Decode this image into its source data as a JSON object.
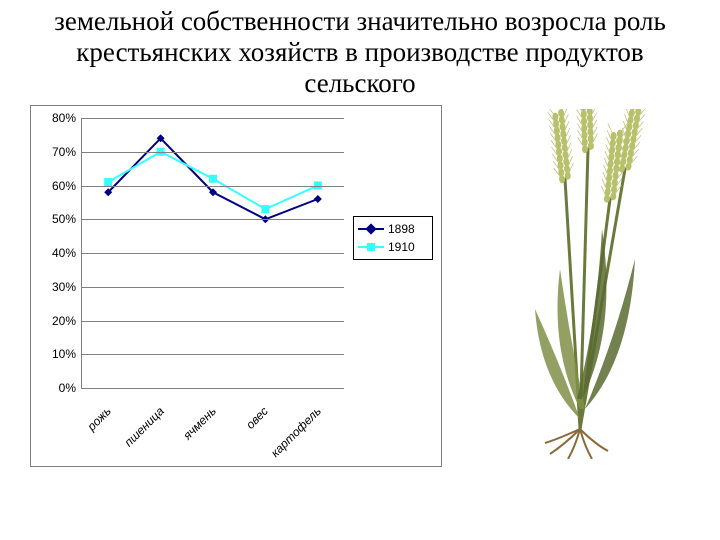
{
  "heading": "земельной собственности значительно возросла роль крестьянских хозяйств в производстве продуктов сельского",
  "chart": {
    "type": "line",
    "categories": [
      "рожь",
      "пшеница",
      "ячмень",
      "овес",
      "картофель"
    ],
    "series": [
      {
        "name": "1898",
        "values": [
          58,
          74,
          58,
          50,
          56
        ],
        "color": "#000080",
        "marker": "diamond"
      },
      {
        "name": "1910",
        "values": [
          61,
          70,
          62,
          53,
          60
        ],
        "color": "#33ffff",
        "marker": "square"
      }
    ],
    "y": {
      "min": 0,
      "max": 80,
      "step": 10,
      "suffix": "%"
    },
    "grid_color": "#808080",
    "background_color": "#ffffff",
    "label_fontsize": 12,
    "line_width": 2,
    "marker_size": 8
  },
  "plant": {
    "stem_color": "#6b7a3a",
    "leaf_color": "#7f9048",
    "leaf_dark": "#5a6a30",
    "ear_color": "#b7c06a",
    "root_color": "#8a6a3a"
  }
}
